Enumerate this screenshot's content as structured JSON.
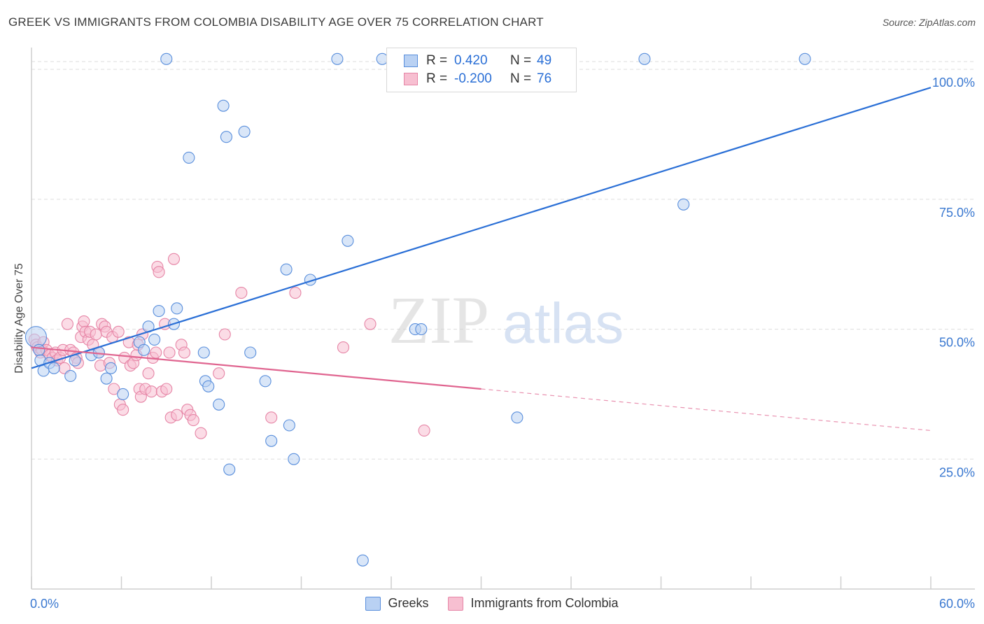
{
  "title": "GREEK VS IMMIGRANTS FROM COLOMBIA DISABILITY AGE OVER 75 CORRELATION CHART",
  "source": "Source: ZipAtlas.com",
  "watermark": {
    "zip": "ZIP",
    "atlas": "atlas"
  },
  "legend": {
    "r_label": "R =",
    "n_label": "N =",
    "rows": [
      {
        "r": "0.420",
        "n": "49"
      },
      {
        "r": "-0.200",
        "n": "76"
      }
    ]
  },
  "bottom_legend": [
    "Greeks",
    "Immigrants from Colombia"
  ],
  "colors": {
    "blue": "#2a6fd6",
    "blue_fill": "#b9d1f3",
    "pink": "#e06590",
    "pink_fill": "#f7bfd1",
    "grid": "#dddddd",
    "tick_label": "#3a78d0"
  },
  "chart_data": {
    "type": "scatter",
    "title": "GREEK VS IMMIGRANTS FROM COLOMBIA DISABILITY AGE OVER 75 CORRELATION CHART",
    "ylabel": "Disability Age Over 75",
    "xlabel": "",
    "xlim": [
      0,
      60
    ],
    "ylim": [
      0,
      105
    ],
    "x_tick_labels": [
      {
        "v": 0,
        "t": "0.0%"
      },
      {
        "v": 60,
        "t": "60.0%"
      }
    ],
    "y_tick_labels": [
      {
        "v": 25,
        "t": "25.0%"
      },
      {
        "v": 50,
        "t": "50.0%"
      },
      {
        "v": 75,
        "t": "75.0%"
      },
      {
        "v": 100,
        "t": "100.0%"
      }
    ],
    "grid": true,
    "series": [
      {
        "name": "Greeks",
        "r": 0.42,
        "n": 49,
        "trend": {
          "x0": 0,
          "y0": 42.5,
          "x1": 60,
          "y1": 96.5
        },
        "points": [
          [
            0.3,
            48.5
          ],
          [
            0.5,
            46
          ],
          [
            0.6,
            44
          ],
          [
            0.8,
            42
          ],
          [
            1.2,
            43.5
          ],
          [
            1.5,
            42.5
          ],
          [
            2.6,
            41
          ],
          [
            2.9,
            44
          ],
          [
            4,
            45
          ],
          [
            4.5,
            45.5
          ],
          [
            5,
            40.5
          ],
          [
            5.3,
            42.5
          ],
          [
            6.1,
            37.5
          ],
          [
            7.2,
            47.5
          ],
          [
            7.5,
            46
          ],
          [
            7.8,
            50.5
          ],
          [
            8.2,
            48
          ],
          [
            8.5,
            53.5
          ],
          [
            9.0,
            102
          ],
          [
            9.5,
            51
          ],
          [
            9.7,
            54
          ],
          [
            10.5,
            83
          ],
          [
            11.5,
            45.5
          ],
          [
            11.6,
            40
          ],
          [
            11.8,
            39
          ],
          [
            12.5,
            35.5
          ],
          [
            12.8,
            93
          ],
          [
            13,
            87
          ],
          [
            13.2,
            23
          ],
          [
            14.2,
            88
          ],
          [
            14.6,
            45.5
          ],
          [
            15.6,
            40
          ],
          [
            16.0,
            28.5
          ],
          [
            17.0,
            61.5
          ],
          [
            17.2,
            31.5
          ],
          [
            17.5,
            25
          ],
          [
            18.6,
            59.5
          ],
          [
            20.4,
            102
          ],
          [
            21.1,
            67
          ],
          [
            22.1,
            5.5
          ],
          [
            23.4,
            102
          ],
          [
            25.5,
            102
          ],
          [
            25.6,
            50
          ],
          [
            26,
            50
          ],
          [
            32.4,
            33
          ],
          [
            40.9,
            102
          ],
          [
            43.5,
            74
          ],
          [
            51.6,
            102
          ]
        ]
      },
      {
        "name": "Immigrants from Colombia",
        "r": -0.2,
        "n": 76,
        "trend": {
          "x0": 0,
          "y0": 46.5,
          "x1": 30,
          "y1": 38.5,
          "dash_x1": 60,
          "dash_y1": 30.5
        },
        "points": [
          [
            0.2,
            48
          ],
          [
            0.3,
            47
          ],
          [
            0.4,
            46.5
          ],
          [
            0.6,
            45.5
          ],
          [
            0.7,
            46
          ],
          [
            0.8,
            47.5
          ],
          [
            1.0,
            46
          ],
          [
            1.2,
            45
          ],
          [
            1.4,
            44.5
          ],
          [
            1.6,
            45.5
          ],
          [
            1.7,
            44
          ],
          [
            1.9,
            44.5
          ],
          [
            2.1,
            46
          ],
          [
            2.2,
            42.5
          ],
          [
            2.4,
            51
          ],
          [
            2.6,
            46
          ],
          [
            2.8,
            45.5
          ],
          [
            3.0,
            44.5
          ],
          [
            3.1,
            43.5
          ],
          [
            3.3,
            48.5
          ],
          [
            3.4,
            50.5
          ],
          [
            3.5,
            51.5
          ],
          [
            3.6,
            49.5
          ],
          [
            3.8,
            48
          ],
          [
            3.9,
            49.5
          ],
          [
            4.1,
            47
          ],
          [
            4.3,
            49
          ],
          [
            4.5,
            45.5
          ],
          [
            4.6,
            43
          ],
          [
            4.7,
            51
          ],
          [
            4.9,
            50.5
          ],
          [
            5.0,
            49.5
          ],
          [
            5.2,
            43.5
          ],
          [
            5.4,
            48.5
          ],
          [
            5.5,
            38.5
          ],
          [
            5.8,
            49.5
          ],
          [
            5.9,
            35.5
          ],
          [
            6.1,
            34.5
          ],
          [
            6.2,
            44.5
          ],
          [
            6.5,
            47.5
          ],
          [
            6.6,
            43
          ],
          [
            6.8,
            43.5
          ],
          [
            7.0,
            45
          ],
          [
            7.1,
            47
          ],
          [
            7.2,
            38.5
          ],
          [
            7.3,
            37
          ],
          [
            7.4,
            49
          ],
          [
            7.6,
            38.5
          ],
          [
            7.8,
            41.5
          ],
          [
            8.0,
            38
          ],
          [
            8.1,
            44.5
          ],
          [
            8.3,
            45.5
          ],
          [
            8.4,
            62
          ],
          [
            8.5,
            61
          ],
          [
            8.7,
            38
          ],
          [
            8.9,
            51
          ],
          [
            9.0,
            38.5
          ],
          [
            9.2,
            45.5
          ],
          [
            9.3,
            33
          ],
          [
            9.5,
            63.5
          ],
          [
            9.7,
            33.5
          ],
          [
            10.0,
            47
          ],
          [
            10.2,
            45.5
          ],
          [
            10.4,
            34.5
          ],
          [
            10.6,
            33.5
          ],
          [
            10.8,
            32.5
          ],
          [
            11.3,
            30
          ],
          [
            12.5,
            41.5
          ],
          [
            12.9,
            49
          ],
          [
            14.0,
            57
          ],
          [
            16.0,
            33
          ],
          [
            17.6,
            57
          ],
          [
            20.8,
            46.5
          ],
          [
            22.6,
            51
          ],
          [
            26.2,
            30.5
          ]
        ]
      }
    ]
  }
}
